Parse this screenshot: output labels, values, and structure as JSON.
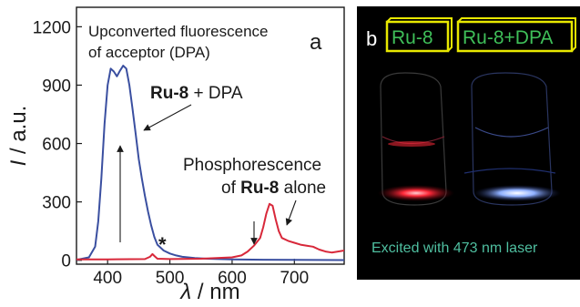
{
  "figure": {
    "panel_a_label": "a",
    "panel_b_label": "b",
    "annotations": {
      "upconverted_line1": "Upconverted fluorescence",
      "upconverted_line2": "of acceptor (DPA)",
      "ru8_dpa_bold": "Ru-8",
      "ru8_dpa_rest": " + DPA",
      "phos_line1": "Phosphorescence",
      "phos_line2_prefix": "of ",
      "phos_line2_bold": "Ru-8",
      "phos_line2_suffix": " alone",
      "asterisk": "*"
    },
    "photo": {
      "label_left": "Ru-8",
      "label_right": "Ru-8+DPA",
      "caption": "Excited with 473 nm laser",
      "colors": {
        "background": "#000000",
        "label_text": "#3fbf59",
        "label_border": "#e8e800",
        "caption": "#4fbfa0",
        "red_glow": "#ff2a3a",
        "blue_glow": "#8fb0ff"
      }
    }
  },
  "chart_data": {
    "type": "line",
    "xlabel_symbol": "λ",
    "xlabel_unit": " / nm",
    "ylabel_symbol": "I",
    "ylabel_unit": " / a.u.",
    "xlim": [
      350,
      780
    ],
    "ylim": [
      -20,
      1300
    ],
    "xticks": [
      400,
      500,
      600,
      700
    ],
    "yticks": [
      0,
      300,
      600,
      900,
      1200
    ],
    "series": [
      {
        "color": "#3a4fa0",
        "x": [
          350,
          370,
          380,
          385,
          390,
          395,
          400,
          405,
          410,
          415,
          420,
          425,
          430,
          435,
          440,
          445,
          450,
          455,
          460,
          465,
          470,
          475,
          480,
          490,
          500,
          510,
          520,
          540,
          560,
          600,
          650,
          700,
          780
        ],
        "y": [
          2,
          15,
          70,
          200,
          420,
          700,
          900,
          985,
          970,
          945,
          975,
          1000,
          985,
          900,
          780,
          650,
          520,
          420,
          330,
          250,
          180,
          120,
          80,
          50,
          35,
          25,
          18,
          12,
          8,
          5,
          3,
          2,
          1
        ]
      },
      {
        "color": "#d8283a",
        "x": [
          350,
          400,
          460,
          468,
          472,
          476,
          480,
          500,
          550,
          600,
          615,
          625,
          635,
          645,
          650,
          655,
          660,
          665,
          670,
          675,
          680,
          690,
          700,
          710,
          720,
          730,
          740,
          750,
          760,
          770,
          780
        ],
        "y": [
          5,
          5,
          6,
          18,
          32,
          20,
          8,
          6,
          8,
          15,
          25,
          45,
          75,
          115,
          170,
          240,
          290,
          280,
          210,
          150,
          115,
          100,
          90,
          80,
          75,
          70,
          55,
          45,
          40,
          45,
          50
        ]
      }
    ]
  }
}
